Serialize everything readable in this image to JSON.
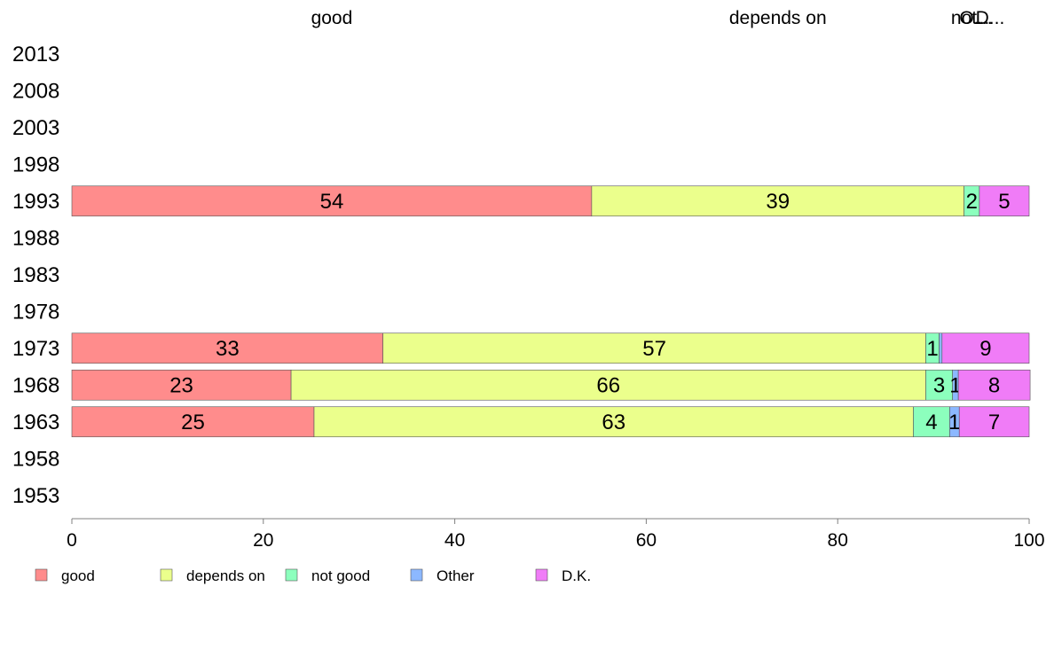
{
  "chart_data": {
    "type": "bar",
    "orientation": "horizontal",
    "stacked": true,
    "categories": [
      "2013",
      "2008",
      "2003",
      "1998",
      "1993",
      "1988",
      "1983",
      "1978",
      "1973",
      "1968",
      "1963",
      "1958",
      "1953"
    ],
    "column_headers": [
      "good",
      "depends on",
      "not...",
      "O...",
      "D..."
    ],
    "series": [
      {
        "name": "good",
        "color": "#ff8c8c",
        "values": [
          null,
          null,
          null,
          null,
          54.3,
          null,
          null,
          null,
          32.5,
          22.9,
          25.3,
          null,
          null
        ],
        "labels": [
          "",
          "",
          "",
          "",
          "54",
          "",
          "",
          "",
          "33",
          "23",
          "25",
          "",
          ""
        ]
      },
      {
        "name": "depends on",
        "color": "#ebff8c",
        "values": [
          null,
          null,
          null,
          null,
          38.9,
          null,
          null,
          null,
          56.7,
          66.3,
          62.6,
          null,
          null
        ],
        "labels": [
          "",
          "",
          "",
          "",
          "39",
          "",
          "",
          "",
          "57",
          "66",
          "63",
          "",
          ""
        ]
      },
      {
        "name": "not good",
        "color": "#8cffbd",
        "values": [
          null,
          null,
          null,
          null,
          1.6,
          null,
          null,
          null,
          1.4,
          2.8,
          3.8,
          null,
          null
        ],
        "labels": [
          "",
          "",
          "",
          "",
          "2",
          "",
          "",
          "",
          "1",
          "3",
          "4",
          "",
          ""
        ]
      },
      {
        "name": "Other",
        "color": "#8cb8ff",
        "values": [
          null,
          null,
          null,
          null,
          0,
          null,
          null,
          null,
          0.3,
          0.6,
          1.0,
          null,
          null
        ],
        "labels": [
          "",
          "",
          "",
          "",
          "",
          "",
          "",
          "",
          "",
          "1",
          "1",
          "",
          ""
        ]
      },
      {
        "name": "D.K.",
        "color": "#f07cf7",
        "values": [
          null,
          null,
          null,
          null,
          5.2,
          null,
          null,
          null,
          9.1,
          7.5,
          7.3,
          null,
          null
        ],
        "labels": [
          "",
          "",
          "",
          "",
          "5",
          "",
          "",
          "",
          "9",
          "8",
          "7",
          "",
          ""
        ]
      }
    ],
    "xlim": [
      0,
      100
    ],
    "xticks": [
      "0",
      "20",
      "40",
      "60",
      "80",
      "100"
    ],
    "grid": false,
    "legend_position": "bottom-left"
  }
}
